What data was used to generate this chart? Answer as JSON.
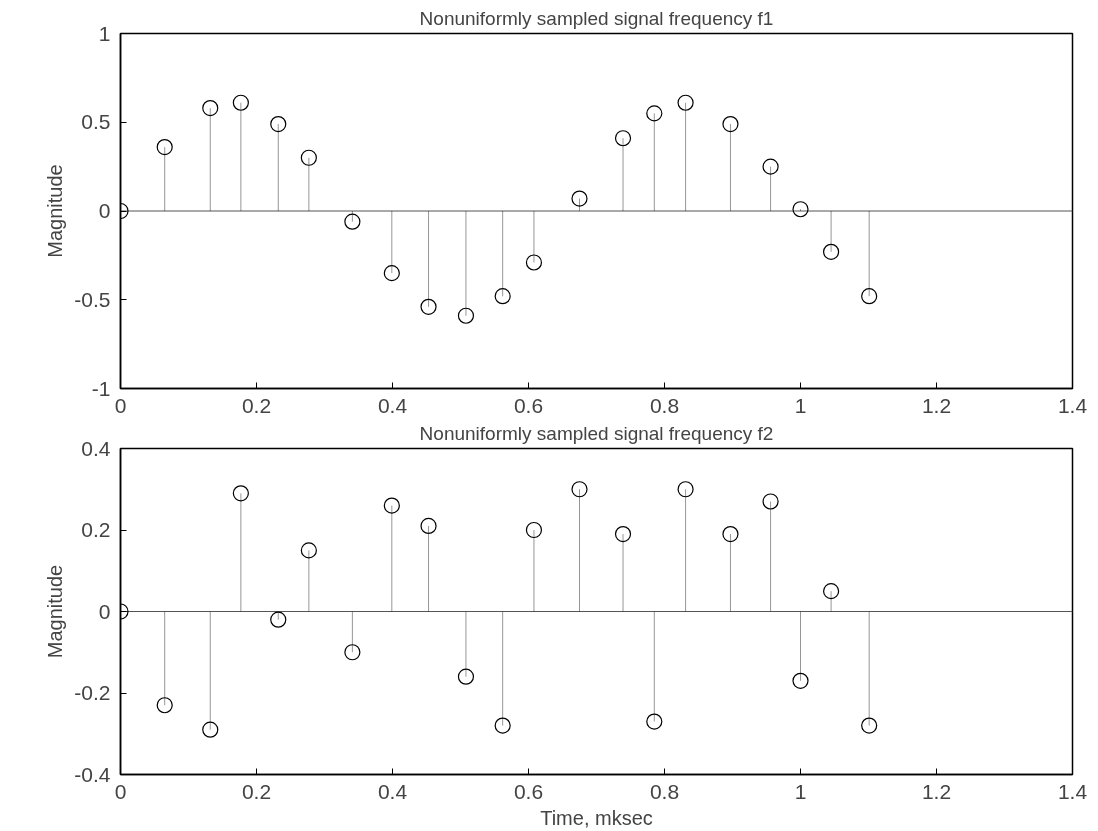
{
  "chart_data": [
    {
      "type": "lollipop",
      "title": "Nonuniformly sampled signal frequency f1",
      "ylabel": "Magnitude",
      "x": [
        0,
        0.065,
        0.132,
        0.177,
        0.232,
        0.277,
        0.341,
        0.399,
        0.453,
        0.508,
        0.562,
        0.608,
        0.675,
        0.739,
        0.785,
        0.831,
        0.897,
        0.956,
        1.0,
        1.045,
        1.101
      ],
      "series": [
        {
          "color": "#000000",
          "values": [
            0,
            0.36,
            0.58,
            0.61,
            0.49,
            0.3,
            -0.06,
            -0.35,
            -0.54,
            -0.59,
            -0.48,
            -0.29,
            0.07,
            0.41,
            0.55,
            0.61,
            0.49,
            0.25,
            0.01,
            -0.23,
            -0.48
          ]
        }
      ],
      "xlim": [
        0,
        1.4
      ],
      "xticks": [
        0,
        0.2,
        0.4,
        0.6,
        0.8,
        1,
        1.2,
        1.4
      ],
      "ylim": [
        -1,
        1
      ],
      "yticks": [
        -1,
        -0.5,
        0,
        0.5,
        1
      ],
      "ref_lines": [
        {
          "axis": "y",
          "value": 0,
          "color": "#555555"
        }
      ],
      "marker": "circle",
      "grid": false
    },
    {
      "type": "lollipop",
      "title": "Nonuniformly sampled signal frequency f2",
      "xlabel": "Time, mksec",
      "ylabel": "Magnitude",
      "x": [
        0,
        0.065,
        0.132,
        0.177,
        0.232,
        0.277,
        0.341,
        0.399,
        0.453,
        0.508,
        0.562,
        0.608,
        0.675,
        0.739,
        0.785,
        0.831,
        0.897,
        0.956,
        1.0,
        1.045,
        1.101
      ],
      "series": [
        {
          "color": "#000000",
          "values": [
            0,
            -0.23,
            -0.29,
            0.29,
            -0.02,
            0.15,
            -0.1,
            0.26,
            0.21,
            -0.16,
            -0.28,
            0.2,
            0.3,
            0.19,
            -0.27,
            0.3,
            0.19,
            0.27,
            -0.17,
            0.05,
            -0.28
          ]
        }
      ],
      "xlim": [
        0,
        1.4
      ],
      "xticks": [
        0,
        0.2,
        0.4,
        0.6,
        0.8,
        1,
        1.2,
        1.4
      ],
      "ylim": [
        -0.4,
        0.4
      ],
      "yticks": [
        -0.4,
        -0.2,
        0,
        0.2,
        0.4
      ],
      "ref_lines": [
        {
          "axis": "y",
          "value": 0,
          "color": "#555555"
        }
      ],
      "marker": "circle",
      "grid": false
    }
  ]
}
